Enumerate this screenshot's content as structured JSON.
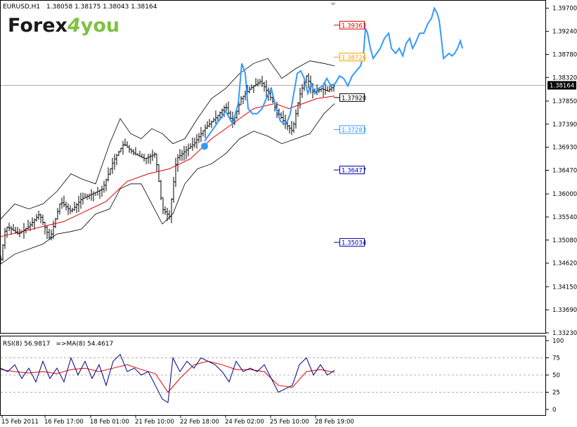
{
  "header": {
    "symbol": "EURUSD,H1",
    "ohlc": "1.38058 1.38175 1.38043 1.38164"
  },
  "brand": {
    "logo_text": "Forex4you",
    "logo_part1": "Forex",
    "logo_part2": "4",
    "logo_part3": "you"
  },
  "colors": {
    "bg": "#ffffff",
    "bars": "#000000",
    "bands": "#000000",
    "ma_red": "#e00000",
    "forecast": "#3399ff",
    "rsi_line": "#000080",
    "rsi_ma": "#e00000",
    "axis": "#000000",
    "grid": "#b0b0b0",
    "logo_dark": "#1a1a1a",
    "logo_green": "#7dc242",
    "level_red": "#d40000",
    "level_orange": "#f5a000",
    "level_lightblue": "#3399ff",
    "level_darkblue": "#0000b0"
  },
  "chart_data": [
    {
      "type": "line",
      "title": "EURUSD,H1",
      "ylim": [
        1.3323,
        1.3985
      ],
      "y_ticks": [
        "1.39700",
        "1.39240",
        "1.38780",
        "1.38320",
        "1.37850",
        "1.37390",
        "1.36930",
        "1.36470",
        "1.36000",
        "1.35540",
        "1.35080",
        "1.34620",
        "1.34150",
        "1.33690",
        "1.33230"
      ],
      "x_labels": [
        "15 Feb 2011",
        "16 Feb 17:00",
        "18 Feb 01:00",
        "21 Feb 10:00",
        "22 Feb 18:00",
        "24 Feb 02:00",
        "25 Feb 10:00",
        "28 Feb 19:00"
      ],
      "current_price": "1.38164",
      "levels": [
        {
          "label": "1.39363",
          "value": 1.39363,
          "color_key": "level_red"
        },
        {
          "label": "1.38726",
          "value": 1.38726,
          "color_key": "level_orange"
        },
        {
          "label": "1.37920",
          "value": 1.3792,
          "color_key": "bars"
        },
        {
          "label": "1.37283",
          "value": 1.37283,
          "color_key": "level_lightblue"
        },
        {
          "label": "1.36477",
          "value": 1.36477,
          "color_key": "level_darkblue"
        },
        {
          "label": "1.35034",
          "value": 1.35034,
          "color_key": "level_darkblue"
        }
      ],
      "price_series": {
        "x": [
          0,
          7,
          15,
          25,
          40,
          55,
          70,
          85,
          100,
          115,
          130,
          145,
          160,
          175,
          190,
          205,
          220,
          230,
          240,
          250,
          262,
          275,
          290,
          305,
          320,
          330,
          342,
          355,
          370,
          385,
          395,
          405,
          415,
          425,
          435,
          445,
          455,
          465,
          475
        ],
        "close": [
          1.347,
          1.3535,
          1.353,
          1.352,
          1.3535,
          1.356,
          1.351,
          1.3585,
          1.3565,
          1.359,
          1.36,
          1.361,
          1.3665,
          1.37,
          1.368,
          1.367,
          1.368,
          1.357,
          1.3555,
          1.367,
          1.3685,
          1.37,
          1.373,
          1.375,
          1.3775,
          1.374,
          1.379,
          1.381,
          1.3825,
          1.379,
          1.376,
          1.374,
          1.3725,
          1.3795,
          1.3835,
          1.38,
          1.381,
          1.3805,
          1.3816
        ]
      },
      "upper_band": {
        "x": [
          0,
          20,
          40,
          60,
          80,
          100,
          115,
          135,
          155,
          170,
          185,
          200,
          215,
          230,
          245,
          262,
          280,
          300,
          320,
          340,
          360,
          380,
          400,
          420,
          440,
          460,
          475
        ],
        "y": [
          1.355,
          1.358,
          1.357,
          1.358,
          1.3605,
          1.364,
          1.363,
          1.362,
          1.37,
          1.375,
          1.372,
          1.371,
          1.373,
          1.372,
          1.37,
          1.371,
          1.375,
          1.379,
          1.381,
          1.384,
          1.386,
          1.387,
          1.383,
          1.385,
          1.3865,
          1.386,
          1.3855
        ]
      },
      "lower_band": {
        "x": [
          0,
          20,
          40,
          60,
          80,
          100,
          115,
          135,
          155,
          170,
          185,
          200,
          215,
          230,
          245,
          262,
          280,
          300,
          320,
          340,
          360,
          380,
          400,
          420,
          440,
          460,
          475
        ],
        "y": [
          1.346,
          1.348,
          1.349,
          1.35,
          1.352,
          1.3525,
          1.353,
          1.356,
          1.357,
          1.361,
          1.362,
          1.362,
          1.358,
          1.354,
          1.356,
          1.362,
          1.365,
          1.366,
          1.368,
          1.371,
          1.3725,
          1.3715,
          1.37,
          1.371,
          1.372,
          1.376,
          1.378
        ]
      },
      "moving_average": {
        "x": [
          0,
          30,
          60,
          90,
          120,
          150,
          180,
          210,
          240,
          270,
          300,
          330,
          360,
          390,
          410,
          430,
          450,
          475
        ],
        "y": [
          1.3515,
          1.3525,
          1.3535,
          1.3545,
          1.3565,
          1.3585,
          1.3625,
          1.364,
          1.365,
          1.367,
          1.371,
          1.374,
          1.377,
          1.378,
          1.377,
          1.378,
          1.379,
          1.3795
        ]
      },
      "forecast": {
        "x": [
          290,
          300,
          310,
          320,
          330,
          338,
          343,
          348,
          352,
          358,
          365,
          372,
          378,
          385,
          392,
          398,
          404,
          408,
          412,
          417,
          422,
          427,
          432,
          437,
          442,
          447,
          452,
          458,
          464,
          470,
          476,
          482,
          488,
          494,
          500,
          506,
          512,
          516,
          519,
          522,
          526,
          530,
          535,
          540,
          546,
          552,
          556,
          562,
          567,
          572,
          577,
          582,
          586,
          590,
          596,
          602,
          608,
          613,
          617,
          621,
          624,
          627,
          630,
          634,
          638,
          642,
          646,
          650,
          654,
          657
        ],
        "y": [
          1.3705,
          1.3725,
          1.3745,
          1.3765,
          1.374,
          1.378,
          1.386,
          1.384,
          1.377,
          1.376,
          1.376,
          1.377,
          1.379,
          1.381,
          1.377,
          1.3745,
          1.374,
          1.3745,
          1.376,
          1.38,
          1.384,
          1.3845,
          1.383,
          1.38,
          1.382,
          1.38,
          1.381,
          1.3815,
          1.383,
          1.3815,
          1.382,
          1.3835,
          1.383,
          1.3815,
          1.3835,
          1.3845,
          1.3855,
          1.3875,
          1.393,
          1.392,
          1.389,
          1.387,
          1.388,
          1.389,
          1.391,
          1.392,
          1.389,
          1.388,
          1.389,
          1.3875,
          1.39,
          1.391,
          1.389,
          1.39,
          1.392,
          1.392,
          1.394,
          1.395,
          1.397,
          1.396,
          1.3945,
          1.391,
          1.387,
          1.3875,
          1.388,
          1.3875,
          1.388,
          1.389,
          1.3905,
          1.389
        ]
      },
      "forecast_marker": {
        "x": 290,
        "y": 1.3695
      }
    },
    {
      "type": "line",
      "title": "RSI(8) 56.9817 =>MA(8) 54.4617",
      "rsi_label": "RSI(8) 56.9817",
      "ma_label": "=>MA(8) 54.4617",
      "ylim": [
        0,
        100
      ],
      "y_ticks": [
        "100",
        "75",
        "50",
        "25",
        "0"
      ],
      "rsi": {
        "x": [
          0,
          10,
          20,
          30,
          40,
          50,
          60,
          70,
          80,
          90,
          100,
          110,
          120,
          130,
          140,
          150,
          160,
          170,
          180,
          190,
          200,
          210,
          220,
          230,
          238,
          245,
          255,
          265,
          275,
          285,
          295,
          305,
          315,
          325,
          335,
          345,
          355,
          365,
          375,
          385,
          395,
          405,
          415,
          425,
          435,
          445,
          455,
          465,
          475
        ],
        "y": [
          60,
          55,
          65,
          45,
          60,
          40,
          70,
          45,
          60,
          40,
          75,
          50,
          70,
          45,
          65,
          35,
          70,
          80,
          55,
          60,
          50,
          55,
          35,
          15,
          10,
          75,
          55,
          70,
          60,
          75,
          70,
          65,
          55,
          40,
          70,
          55,
          60,
          55,
          65,
          45,
          25,
          30,
          35,
          65,
          75,
          50,
          65,
          50,
          57
        ]
      },
      "rsi_ma": {
        "x": [
          0,
          20,
          40,
          60,
          80,
          100,
          120,
          140,
          160,
          180,
          200,
          220,
          238,
          255,
          275,
          295,
          315,
          335,
          355,
          375,
          395,
          415,
          435,
          455,
          475
        ],
        "y": [
          58,
          55,
          53,
          55,
          52,
          58,
          60,
          55,
          60,
          65,
          58,
          52,
          25,
          45,
          65,
          70,
          65,
          58,
          58,
          55,
          35,
          32,
          55,
          58,
          54
        ]
      }
    }
  ]
}
